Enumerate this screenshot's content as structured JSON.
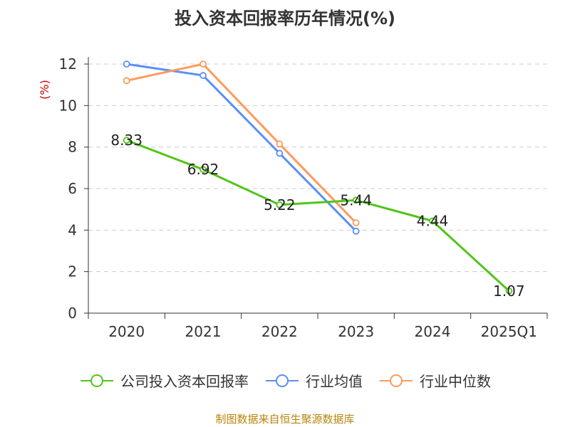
{
  "title": "投入资本回报率历年情况(%)",
  "source": "制图数据来自恒生聚源数据库",
  "chart_data": {
    "type": "line",
    "categories": [
      "2020",
      "2021",
      "2022",
      "2023",
      "2024",
      "2025Q1"
    ],
    "ylabel": "(%)",
    "ylim": [
      0,
      12
    ],
    "yticks": [
      0,
      2,
      4,
      6,
      8,
      10,
      12
    ],
    "grid": true,
    "legend_position": "bottom",
    "series": [
      {
        "name": "公司投入资本回报率",
        "color": "#52c41a",
        "values": [
          8.33,
          6.92,
          5.22,
          5.44,
          4.44,
          1.07
        ],
        "labels": [
          "8.33",
          "6.92",
          "5.22",
          "5.44",
          "4.44",
          "1.07"
        ]
      },
      {
        "name": "行业均值",
        "color": "#5b8ff9",
        "values": [
          12.0,
          11.45,
          7.7,
          3.95,
          null,
          null
        ]
      },
      {
        "name": "行业中位数",
        "color": "#ff9a5a",
        "values": [
          11.2,
          12.0,
          8.15,
          4.35,
          null,
          null
        ]
      }
    ]
  }
}
